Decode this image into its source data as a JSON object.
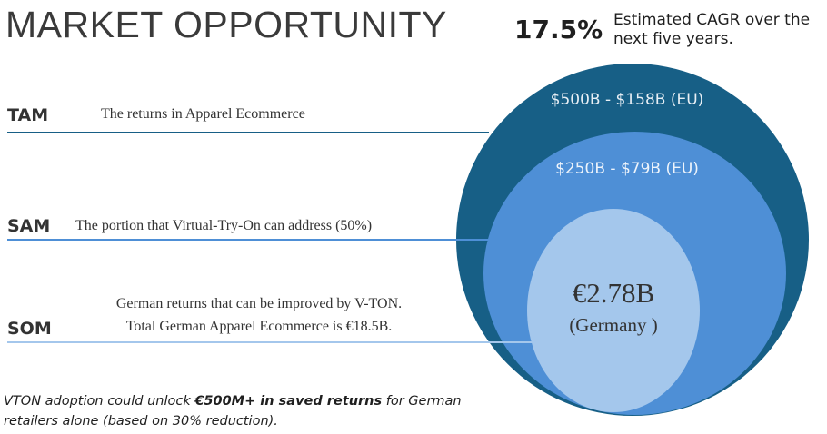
{
  "title": "MARKET OPPORTUNITY",
  "cagr": {
    "value": "17.5%",
    "description": "Estimated CAGR over the next five years."
  },
  "tiers": {
    "tam": {
      "label": "TAM",
      "description": "The returns in Apparel Ecommerce",
      "value": "$500B - $158B (EU)"
    },
    "sam": {
      "label": "SAM",
      "description": "The portion that Virtual-Try-On can address (50%)",
      "value": "$250B - $79B (EU)"
    },
    "som": {
      "label": "SOM",
      "description_line1": "German returns that can be improved by V-TON.",
      "description_line2": "Total German Apparel Ecommerce is €18.5B.",
      "value": "€2.78B",
      "sub": "(Germany )"
    }
  },
  "footer": {
    "prefix": "VTON adoption could unlock ",
    "highlight": "€500M+ in saved returns",
    "suffix": " for German retailers alone (based on 30% reduction)."
  },
  "colors": {
    "tam": "#175f86",
    "sam": "#4e8fd6",
    "som": "#a4c7ec"
  }
}
